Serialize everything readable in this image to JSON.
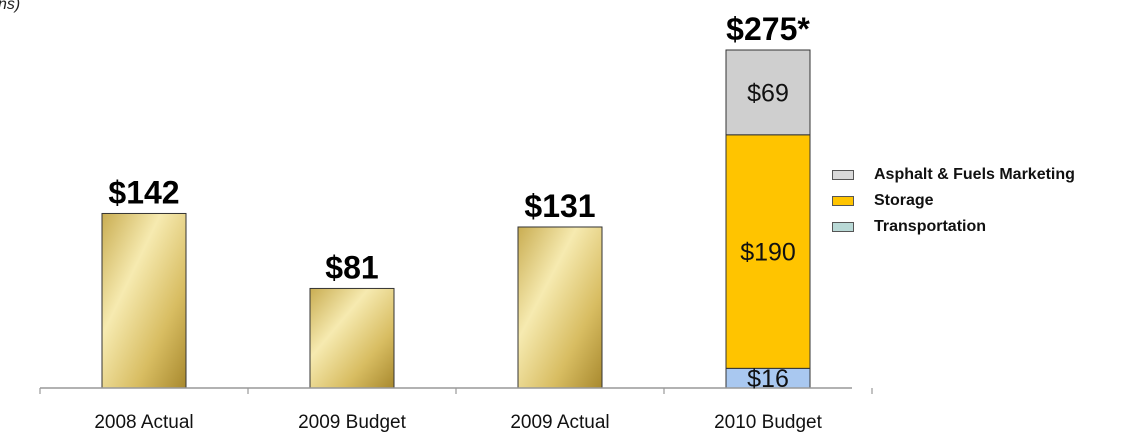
{
  "corner_text": "ns)",
  "chart_data": {
    "type": "bar",
    "categories": [
      "2008 Actual",
      "2009 Budget",
      "2009 Actual",
      "2010 Budget"
    ],
    "values": [
      142,
      81,
      131,
      275
    ],
    "total_labels": [
      "$142",
      "$81",
      "$131",
      "$275*"
    ],
    "stacked": {
      "category": "2010 Budget",
      "series": [
        {
          "name": "Transportation",
          "value": 16,
          "label": "$16",
          "color": "#a9c8f0"
        },
        {
          "name": "Storage",
          "value": 190,
          "label": "$190",
          "color": "#ffc400"
        },
        {
          "name": "Asphalt & Fuels Marketing",
          "value": 69,
          "label": "$69",
          "color": "#cfcfcf"
        }
      ]
    },
    "legend": [
      {
        "name": "Asphalt & Fuels Marketing",
        "color": "#d9d9d9"
      },
      {
        "name": "Storage",
        "color": "#ffc400"
      },
      {
        "name": "Transportation",
        "color": "#b9d9d6"
      }
    ],
    "legend_position": "right",
    "grid": false,
    "title": "",
    "xlabel": "",
    "ylabel": "",
    "ylim": [
      0,
      300
    ],
    "colors": {
      "gold_light": "#f3e6a0",
      "gold_dark": "#a8892e",
      "axis": "#999999"
    }
  }
}
